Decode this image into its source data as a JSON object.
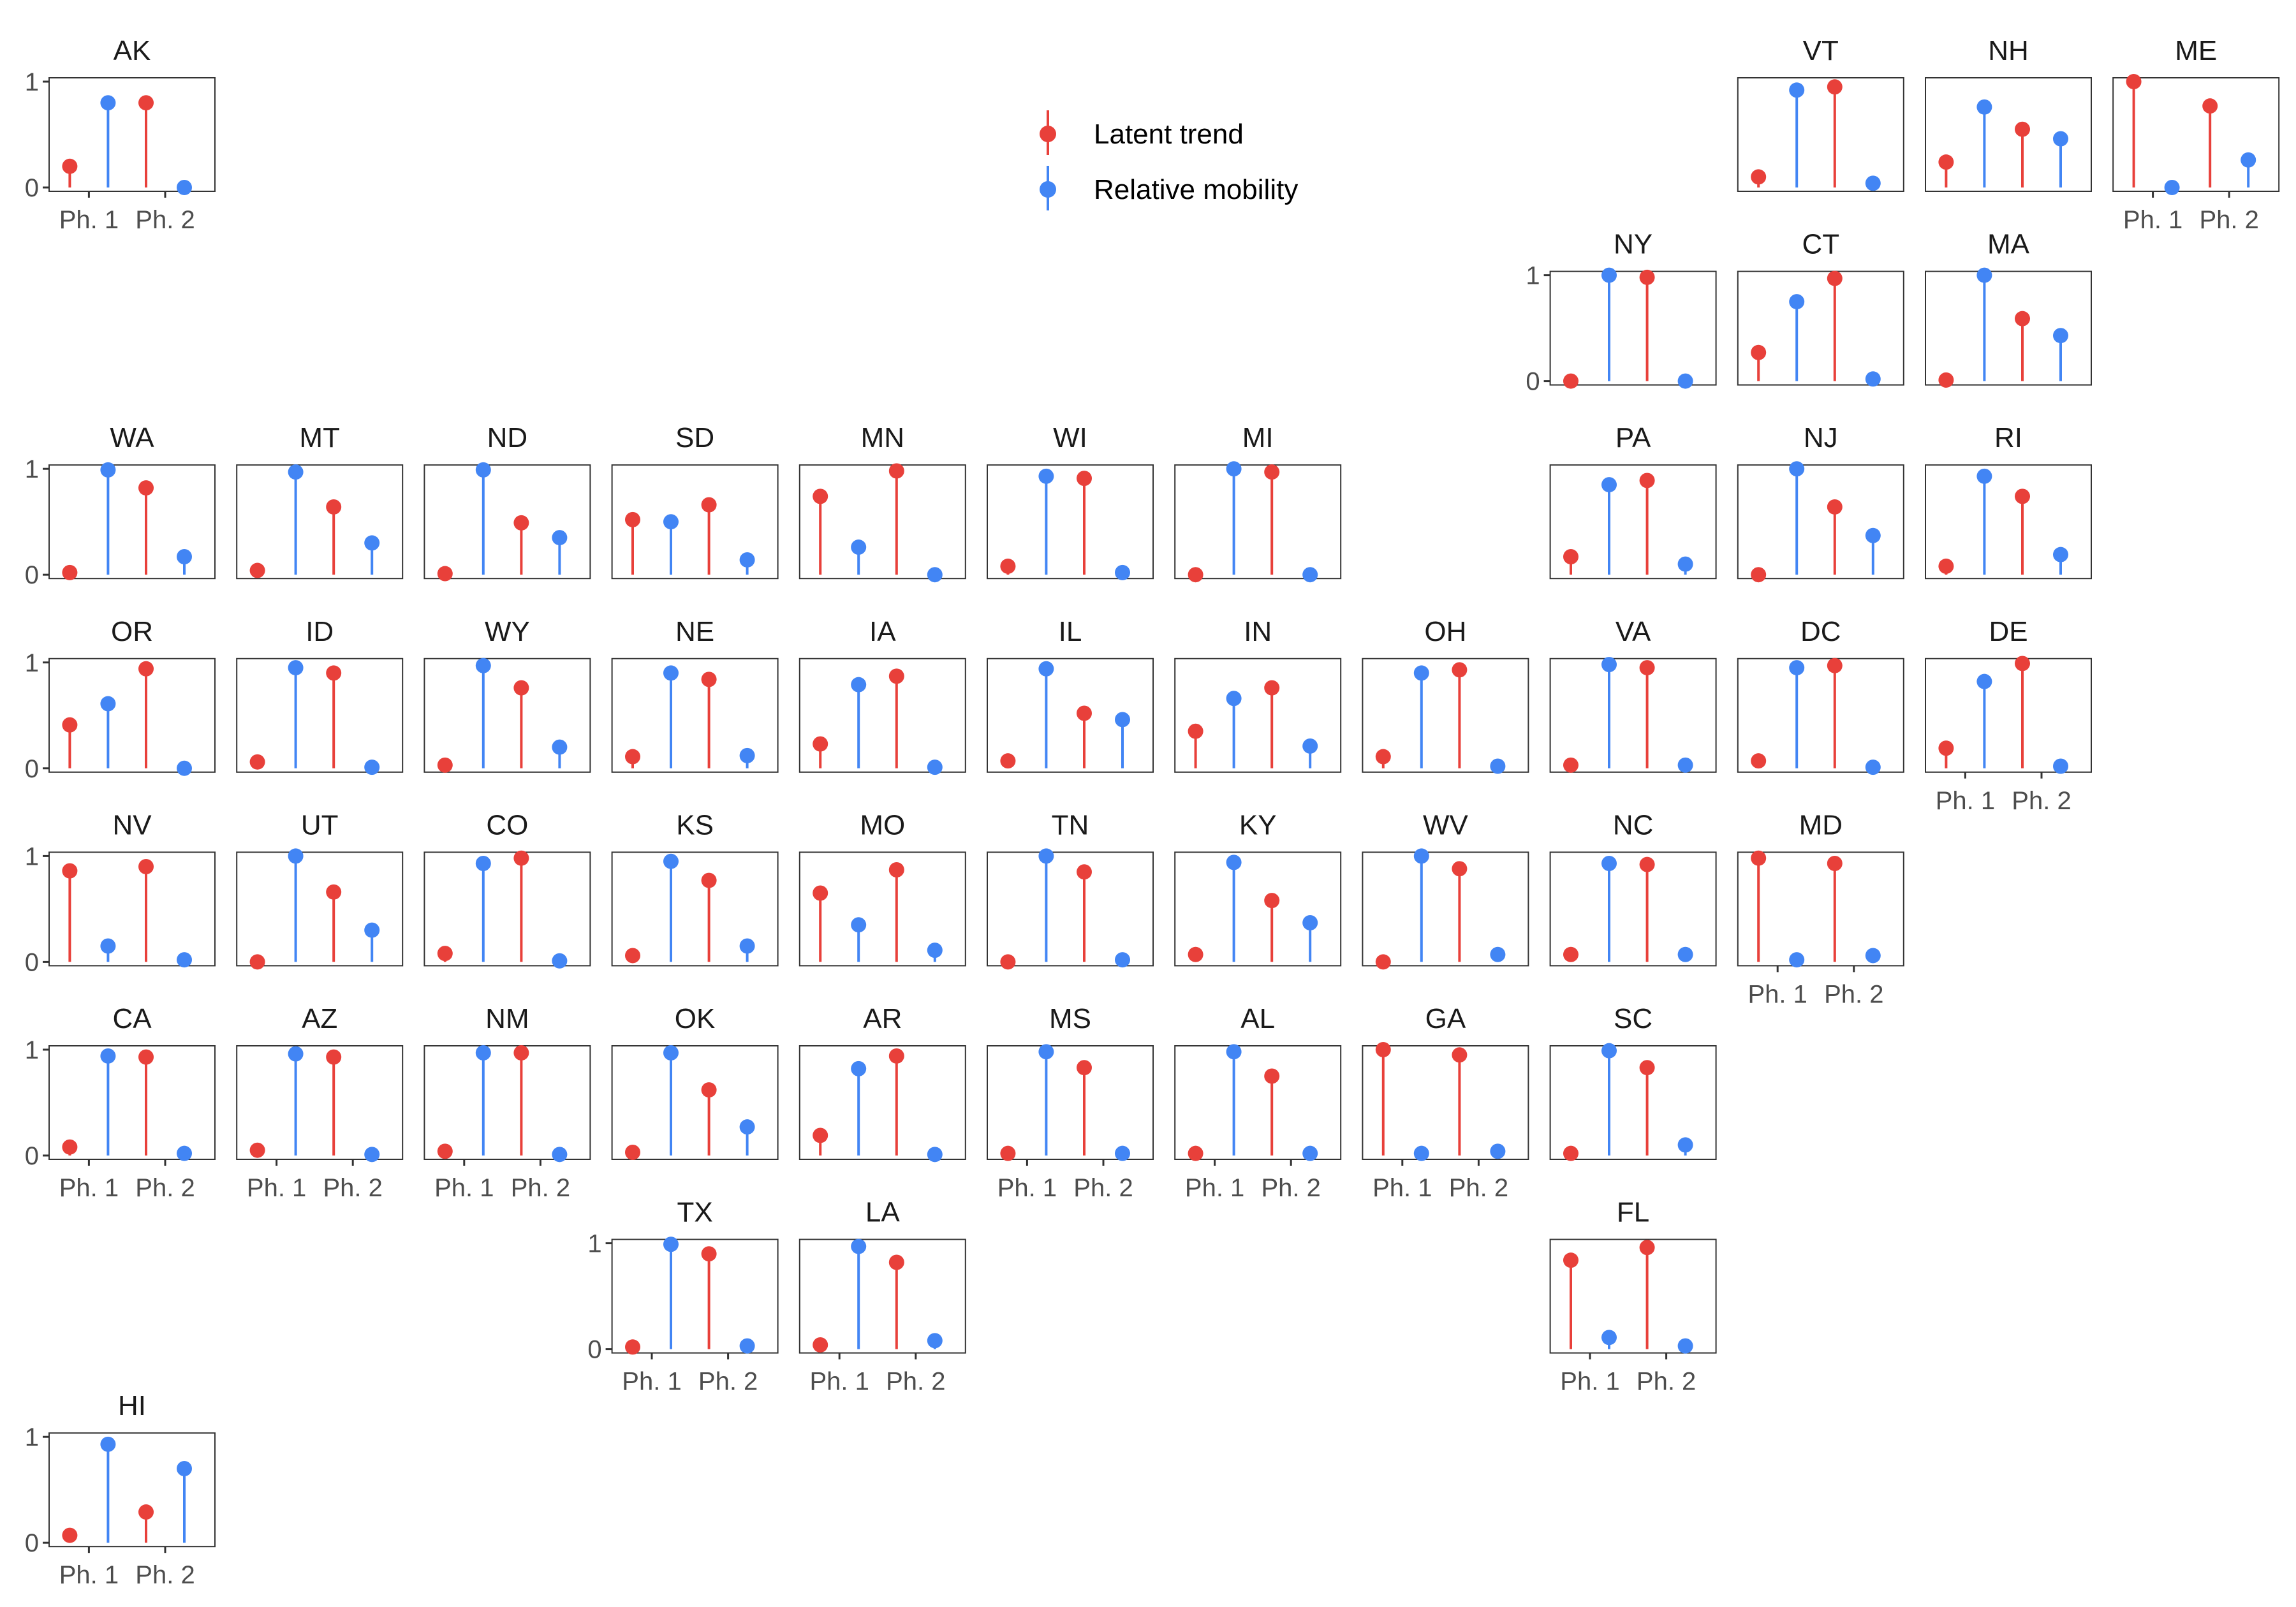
{
  "chart_data": {
    "type": "lollipop",
    "layout": "small-multiples-us-tile-grid",
    "y_range": [
      0,
      1
    ],
    "y_ticks": [
      "0",
      "1"
    ],
    "x_categories": [
      "Ph. 1",
      "Ph. 2"
    ],
    "legend": {
      "placement": "top-center",
      "entries": [
        {
          "key": "latent",
          "label": "Latent trend",
          "color": "#e8403a"
        },
        {
          "key": "mobility",
          "label": "Relative mobility",
          "color": "#4285f4"
        }
      ]
    },
    "panels": [
      {
        "state": "AK",
        "row": 0,
        "col": 0,
        "latent": [
          0.2,
          0.8
        ],
        "mobility": [
          0.8,
          0.0
        ]
      },
      {
        "state": "VT",
        "row": 0,
        "col": 9,
        "latent": [
          0.1,
          0.95
        ],
        "mobility": [
          0.92,
          0.04
        ]
      },
      {
        "state": "NH",
        "row": 0,
        "col": 10,
        "latent": [
          0.24,
          0.55
        ],
        "mobility": [
          0.76,
          0.46
        ]
      },
      {
        "state": "ME",
        "row": 0,
        "col": 11,
        "latent": [
          1.0,
          0.77
        ],
        "mobility": [
          0.0,
          0.26
        ]
      },
      {
        "state": "NY",
        "row": 1,
        "col": 8,
        "latent": [
          0.0,
          0.98
        ],
        "mobility": [
          1.0,
          0.0
        ]
      },
      {
        "state": "CT",
        "row": 1,
        "col": 9,
        "latent": [
          0.27,
          0.97
        ],
        "mobility": [
          0.75,
          0.02
        ]
      },
      {
        "state": "MA",
        "row": 1,
        "col": 10,
        "latent": [
          0.01,
          0.59
        ],
        "mobility": [
          1.0,
          0.43
        ]
      },
      {
        "state": "WA",
        "row": 2,
        "col": 0,
        "latent": [
          0.02,
          0.82
        ],
        "mobility": [
          0.99,
          0.17
        ]
      },
      {
        "state": "MT",
        "row": 2,
        "col": 1,
        "latent": [
          0.04,
          0.64
        ],
        "mobility": [
          0.97,
          0.3
        ]
      },
      {
        "state": "ND",
        "row": 2,
        "col": 2,
        "latent": [
          0.01,
          0.49
        ],
        "mobility": [
          0.99,
          0.35
        ]
      },
      {
        "state": "SD",
        "row": 2,
        "col": 3,
        "latent": [
          0.52,
          0.66
        ],
        "mobility": [
          0.5,
          0.14
        ]
      },
      {
        "state": "MN",
        "row": 2,
        "col": 4,
        "latent": [
          0.74,
          0.98
        ],
        "mobility": [
          0.26,
          0.0
        ]
      },
      {
        "state": "WI",
        "row": 2,
        "col": 5,
        "latent": [
          0.08,
          0.91
        ],
        "mobility": [
          0.93,
          0.02
        ]
      },
      {
        "state": "MI",
        "row": 2,
        "col": 6,
        "latent": [
          0.0,
          0.97
        ],
        "mobility": [
          1.0,
          0.0
        ]
      },
      {
        "state": "PA",
        "row": 2,
        "col": 8,
        "latent": [
          0.17,
          0.89
        ],
        "mobility": [
          0.85,
          0.1
        ]
      },
      {
        "state": "NJ",
        "row": 2,
        "col": 9,
        "latent": [
          0.0,
          0.64
        ],
        "mobility": [
          1.0,
          0.37
        ]
      },
      {
        "state": "RI",
        "row": 2,
        "col": 10,
        "latent": [
          0.08,
          0.74
        ],
        "mobility": [
          0.93,
          0.19
        ]
      },
      {
        "state": "OR",
        "row": 3,
        "col": 0,
        "latent": [
          0.41,
          0.94
        ],
        "mobility": [
          0.61,
          0.0
        ]
      },
      {
        "state": "ID",
        "row": 3,
        "col": 1,
        "latent": [
          0.06,
          0.9
        ],
        "mobility": [
          0.95,
          0.01
        ]
      },
      {
        "state": "WY",
        "row": 3,
        "col": 2,
        "latent": [
          0.03,
          0.76
        ],
        "mobility": [
          0.97,
          0.2
        ]
      },
      {
        "state": "NE",
        "row": 3,
        "col": 3,
        "latent": [
          0.11,
          0.84
        ],
        "mobility": [
          0.9,
          0.12
        ]
      },
      {
        "state": "IA",
        "row": 3,
        "col": 4,
        "latent": [
          0.23,
          0.87
        ],
        "mobility": [
          0.79,
          0.01
        ]
      },
      {
        "state": "IL",
        "row": 3,
        "col": 5,
        "latent": [
          0.07,
          0.52
        ],
        "mobility": [
          0.94,
          0.46
        ]
      },
      {
        "state": "IN",
        "row": 3,
        "col": 6,
        "latent": [
          0.35,
          0.76
        ],
        "mobility": [
          0.66,
          0.21
        ]
      },
      {
        "state": "OH",
        "row": 3,
        "col": 7,
        "latent": [
          0.11,
          0.93
        ],
        "mobility": [
          0.9,
          0.02
        ]
      },
      {
        "state": "VA",
        "row": 3,
        "col": 8,
        "latent": [
          0.03,
          0.95
        ],
        "mobility": [
          0.98,
          0.03
        ]
      },
      {
        "state": "DC",
        "row": 3,
        "col": 9,
        "latent": [
          0.07,
          0.97
        ],
        "mobility": [
          0.95,
          0.01
        ]
      },
      {
        "state": "DE",
        "row": 3,
        "col": 10,
        "latent": [
          0.19,
          0.99
        ],
        "mobility": [
          0.82,
          0.02
        ]
      },
      {
        "state": "NV",
        "row": 4,
        "col": 0,
        "latent": [
          0.86,
          0.9
        ],
        "mobility": [
          0.15,
          0.02
        ]
      },
      {
        "state": "UT",
        "row": 4,
        "col": 1,
        "latent": [
          0.0,
          0.66
        ],
        "mobility": [
          1.0,
          0.3
        ]
      },
      {
        "state": "CO",
        "row": 4,
        "col": 2,
        "latent": [
          0.08,
          0.98
        ],
        "mobility": [
          0.93,
          0.01
        ]
      },
      {
        "state": "KS",
        "row": 4,
        "col": 3,
        "latent": [
          0.06,
          0.77
        ],
        "mobility": [
          0.95,
          0.15
        ]
      },
      {
        "state": "MO",
        "row": 4,
        "col": 4,
        "latent": [
          0.65,
          0.87
        ],
        "mobility": [
          0.35,
          0.11
        ]
      },
      {
        "state": "TN",
        "row": 4,
        "col": 5,
        "latent": [
          0.0,
          0.85
        ],
        "mobility": [
          1.0,
          0.02
        ]
      },
      {
        "state": "KY",
        "row": 4,
        "col": 6,
        "latent": [
          0.07,
          0.58
        ],
        "mobility": [
          0.94,
          0.37
        ]
      },
      {
        "state": "WV",
        "row": 4,
        "col": 7,
        "latent": [
          0.0,
          0.88
        ],
        "mobility": [
          1.0,
          0.07
        ]
      },
      {
        "state": "NC",
        "row": 4,
        "col": 8,
        "latent": [
          0.07,
          0.92
        ],
        "mobility": [
          0.93,
          0.07
        ]
      },
      {
        "state": "MD",
        "row": 4,
        "col": 9,
        "latent": [
          0.98,
          0.93
        ],
        "mobility": [
          0.02,
          0.06
        ]
      },
      {
        "state": "CA",
        "row": 5,
        "col": 0,
        "latent": [
          0.08,
          0.93
        ],
        "mobility": [
          0.94,
          0.02
        ]
      },
      {
        "state": "AZ",
        "row": 5,
        "col": 1,
        "latent": [
          0.05,
          0.93
        ],
        "mobility": [
          0.96,
          0.01
        ]
      },
      {
        "state": "NM",
        "row": 5,
        "col": 2,
        "latent": [
          0.04,
          0.97
        ],
        "mobility": [
          0.97,
          0.01
        ]
      },
      {
        "state": "OK",
        "row": 5,
        "col": 3,
        "latent": [
          0.03,
          0.62
        ],
        "mobility": [
          0.97,
          0.27
        ]
      },
      {
        "state": "AR",
        "row": 5,
        "col": 4,
        "latent": [
          0.19,
          0.94
        ],
        "mobility": [
          0.82,
          0.01
        ]
      },
      {
        "state": "MS",
        "row": 5,
        "col": 5,
        "latent": [
          0.02,
          0.83
        ],
        "mobility": [
          0.98,
          0.02
        ]
      },
      {
        "state": "AL",
        "row": 5,
        "col": 6,
        "latent": [
          0.02,
          0.75
        ],
        "mobility": [
          0.98,
          0.02
        ]
      },
      {
        "state": "GA",
        "row": 5,
        "col": 7,
        "latent": [
          1.0,
          0.95
        ],
        "mobility": [
          0.02,
          0.04
        ]
      },
      {
        "state": "SC",
        "row": 5,
        "col": 8,
        "latent": [
          0.02,
          0.83
        ],
        "mobility": [
          0.99,
          0.1
        ]
      },
      {
        "state": "TX",
        "row": 6,
        "col": 3,
        "latent": [
          0.02,
          0.9
        ],
        "mobility": [
          0.99,
          0.03
        ]
      },
      {
        "state": "LA",
        "row": 6,
        "col": 4,
        "latent": [
          0.04,
          0.82
        ],
        "mobility": [
          0.97,
          0.08
        ]
      },
      {
        "state": "FL",
        "row": 6,
        "col": 8,
        "latent": [
          0.84,
          0.96
        ],
        "mobility": [
          0.11,
          0.03
        ]
      },
      {
        "state": "HI",
        "row": 7,
        "col": 0,
        "latent": [
          0.07,
          0.29
        ],
        "mobility": [
          0.93,
          0.7
        ]
      }
    ]
  }
}
